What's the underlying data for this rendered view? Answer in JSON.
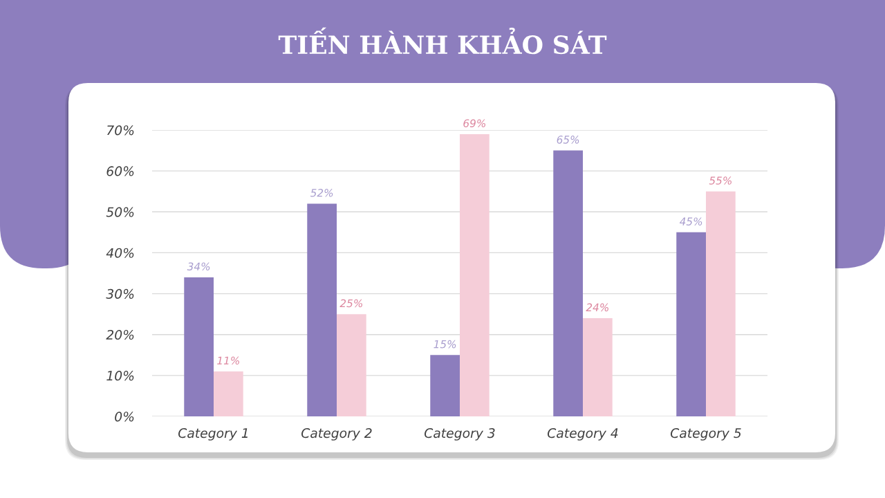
{
  "chart_data": {
    "type": "bar",
    "title": "TIẾN HÀNH KHẢO SÁT",
    "categories": [
      "Category 1",
      "Category 2",
      "Category 3",
      "Category 4",
      "Category 5"
    ],
    "series": [
      {
        "color": "#8c7dbd",
        "values": [
          34,
          52,
          15,
          65,
          45
        ],
        "value_labels": [
          "34%",
          "52%",
          "15%",
          "65%",
          "45%"
        ]
      },
      {
        "color": "#f5cdd8",
        "values": [
          11,
          25,
          69,
          24,
          55
        ],
        "value_labels": [
          "11%",
          "25%",
          "69%",
          "24%",
          "55%"
        ]
      }
    ],
    "ylim": [
      0,
      70
    ],
    "yticks": [
      {
        "value": 0,
        "label": "0%"
      },
      {
        "value": 10,
        "label": "10%"
      },
      {
        "value": 20,
        "label": "20%"
      },
      {
        "value": 30,
        "label": "30%"
      },
      {
        "value": 40,
        "label": "40%"
      },
      {
        "value": 50,
        "label": "50%"
      },
      {
        "value": 60,
        "label": "60%"
      },
      {
        "value": 70,
        "label": "70%"
      }
    ],
    "grid": "y"
  }
}
